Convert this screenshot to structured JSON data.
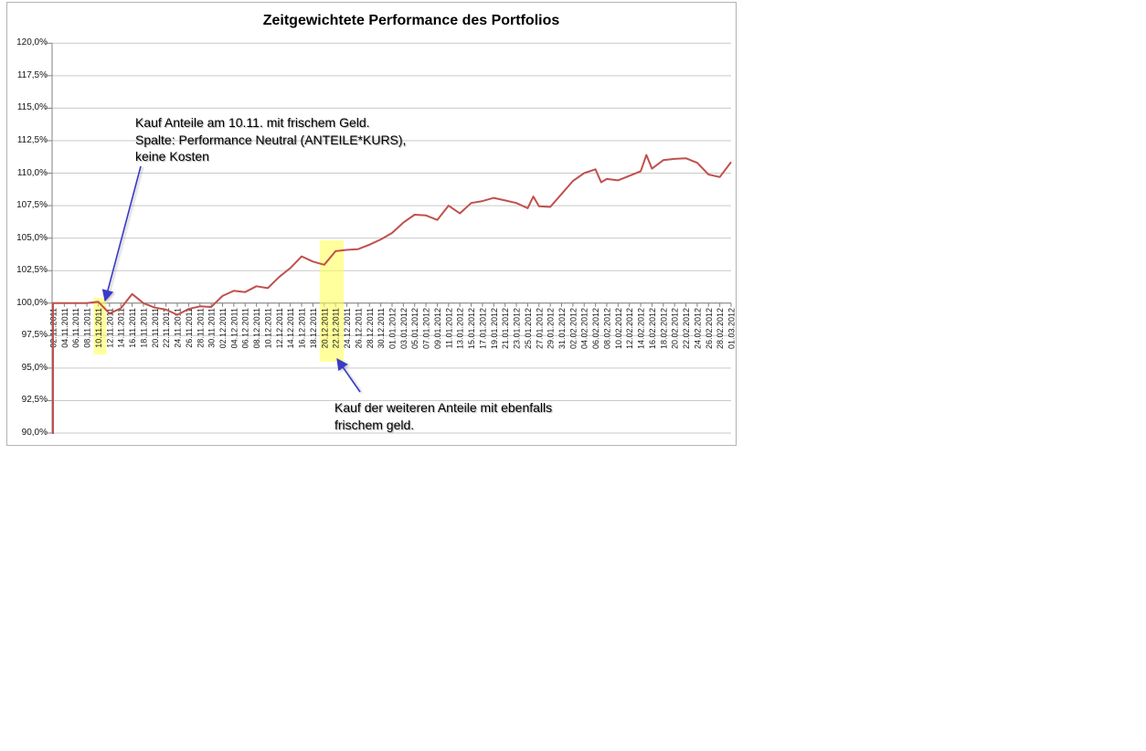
{
  "chart_data": {
    "type": "line",
    "title": "Zeitgewichtete Performance des Portfolios",
    "categories": [
      "02.11.2011",
      "04.11.2011",
      "06.11.2011",
      "08.11.2011",
      "10.11.2011",
      "12.11.2011",
      "14.11.2011",
      "16.11.2011",
      "18.11.2011",
      "20.11.2011",
      "22.11.2011",
      "24.11.2011",
      "26.11.2011",
      "28.11.2011",
      "30.11.2011",
      "02.12.2011",
      "04.12.2011",
      "06.12.2011",
      "08.12.2011",
      "10.12.2011",
      "12.12.2011",
      "14.12.2011",
      "16.12.2011",
      "18.12.2011",
      "20.12.2011",
      "22.12.2011",
      "24.12.2011",
      "26.12.2011",
      "28.12.2011",
      "30.12.2011",
      "01.01.2012",
      "03.01.2012",
      "05.01.2012",
      "07.01.2012",
      "09.01.2012",
      "11.01.2012",
      "13.01.2012",
      "15.01.2012",
      "17.01.2012",
      "19.01.2012",
      "21.01.2012",
      "23.01.2012",
      "25.01.2012",
      "27.01.2012",
      "29.01.2012",
      "31.01.2012",
      "02.02.2012",
      "04.02.2012",
      "06.02.2012",
      "08.02.2012",
      "10.02.2012",
      "12.02.2012",
      "14.02.2012",
      "16.02.2012",
      "18.02.2012",
      "20.02.2012",
      "22.02.2012",
      "24.02.2012",
      "26.02.2012",
      "28.02.2012",
      "01.03.2012"
    ],
    "values": [
      100.0,
      100.0,
      100.0,
      100.0,
      100.1,
      99.2,
      99.6,
      100.7,
      100.0,
      99.65,
      99.5,
      99.1,
      99.55,
      99.75,
      99.7,
      100.55,
      100.95,
      100.85,
      101.3,
      101.15,
      102.0,
      102.7,
      103.6,
      103.2,
      102.95,
      104.0,
      104.1,
      104.15,
      104.5,
      104.9,
      105.4,
      106.2,
      106.8,
      106.75,
      106.4,
      107.5,
      106.9,
      107.7,
      107.85,
      108.1,
      107.9,
      107.7,
      107.3,
      107.45,
      107.4,
      108.4,
      109.4,
      110.0,
      110.3,
      109.55,
      109.45,
      109.8,
      110.15,
      110.35,
      111.0,
      111.1,
      111.15,
      110.8,
      109.9,
      109.7,
      110.85
    ],
    "inter_point_spikes": [
      {
        "after": "25.01.2012",
        "value": 108.2
      },
      {
        "after": "06.02.2012",
        "value": 109.3
      },
      {
        "after": "14.02.2012",
        "value": 111.4
      }
    ],
    "start_drop_offscale": true,
    "ylim": [
      90,
      120
    ],
    "ytick_step": 2.5,
    "ytick_labels": [
      "120,0%",
      "117,5%",
      "115,0%",
      "112,5%",
      "110,0%",
      "107,5%",
      "105,0%",
      "102,5%",
      "100,0%",
      "97,5%",
      "95,0%",
      "92,5%",
      "90,0%"
    ],
    "xlabel": "",
    "ylabel": "",
    "grid": "horizontal-only",
    "legend": "none",
    "line_color": "#c0504d",
    "gridline_color": "#c9c9c9",
    "axis_color": "#808080",
    "arrow_color": "#3a3ac8",
    "highlight_color": "#ffff4d",
    "highlights": [
      {
        "categories": [
          "10.11.2011"
        ],
        "area": "line-dip-and-axis-label"
      },
      {
        "categories": [
          "20.12.2011",
          "22.12.2011"
        ],
        "area": "plot-and-axis-labels"
      }
    ],
    "annotations": [
      {
        "id": "buy-1",
        "text": "Kauf Anteile am 10.11. mit frischem Geld.\nSpalte: Performance Neutral (ANTEILE*KURS),\nkeine Kosten",
        "arrow_points_to": "10.11.2011"
      },
      {
        "id": "buy-2",
        "text": "Kauf der weiteren Anteile mit ebenfalls\nfrischem geld.",
        "arrow_points_to": "20.12.2011-22.12.2011"
      }
    ]
  }
}
